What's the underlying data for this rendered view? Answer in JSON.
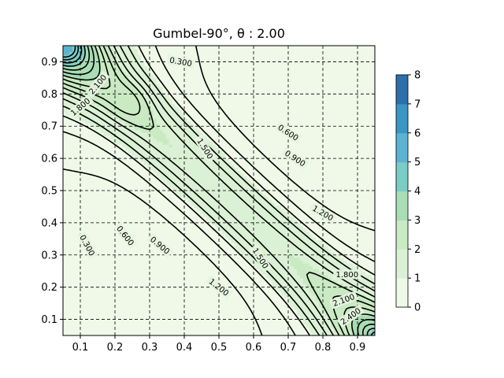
{
  "chart_data": {
    "type": "contour",
    "title": "Gumbel-90°, θ : 2.00",
    "xlabel": "",
    "ylabel": "",
    "xlim": [
      0.05,
      0.95
    ],
    "ylim": [
      0.05,
      0.95
    ],
    "x_ticks": [
      "0.1",
      "0.2",
      "0.3",
      "0.4",
      "0.5",
      "0.6",
      "0.7",
      "0.8",
      "0.9"
    ],
    "y_ticks": [
      "0.1",
      "0.2",
      "0.3",
      "0.4",
      "0.5",
      "0.6",
      "0.7",
      "0.8",
      "0.9"
    ],
    "grid": true,
    "grid_style": "dashed",
    "colormap": "GnBu",
    "colorbar": {
      "range": [
        0,
        8
      ],
      "ticks": [
        "0",
        "1",
        "2",
        "3",
        "4",
        "5",
        "6",
        "7",
        "8"
      ],
      "colors": [
        "#f0f9e8",
        "#dbf1d5",
        "#c9eac2",
        "#a8ddb5",
        "#7bccc4",
        "#5bb3d1",
        "#3a96c2",
        "#2b6fab"
      ]
    },
    "contour_levels": [
      0.3,
      0.6,
      0.9,
      1.2,
      1.5,
      1.8,
      2.1,
      2.4,
      2.7,
      3.0,
      3.3,
      3.6,
      3.9,
      4.2,
      4.5,
      4.8
    ],
    "contour_labels": [
      {
        "text": "0.300",
        "x": 0.39,
        "y": 0.9,
        "angle": 10
      },
      {
        "text": "0.300",
        "x": 0.12,
        "y": 0.33,
        "angle": 62
      },
      {
        "text": "0.600",
        "x": 0.7,
        "y": 0.68,
        "angle": 33
      },
      {
        "text": "0.600",
        "x": 0.23,
        "y": 0.36,
        "angle": 52
      },
      {
        "text": "0.900",
        "x": 0.72,
        "y": 0.6,
        "angle": 33
      },
      {
        "text": "0.900",
        "x": 0.33,
        "y": 0.33,
        "angle": 40
      },
      {
        "text": "1.200",
        "x": 0.8,
        "y": 0.43,
        "angle": 30
      },
      {
        "text": "1.200",
        "x": 0.5,
        "y": 0.2,
        "angle": 38
      },
      {
        "text": "1.500",
        "x": 0.46,
        "y": 0.63,
        "angle": 58
      },
      {
        "text": "1.500",
        "x": 0.62,
        "y": 0.29,
        "angle": 58
      },
      {
        "text": "1.800",
        "x": 0.87,
        "y": 0.24,
        "angle": 0
      },
      {
        "text": "2.100",
        "x": 0.86,
        "y": 0.16,
        "angle": -20
      },
      {
        "text": "2.400",
        "x": 0.88,
        "y": 0.11,
        "angle": -35
      },
      {
        "text": "1.800",
        "x": 0.1,
        "y": 0.76,
        "angle": -40
      },
      {
        "text": "2.100",
        "x": 0.15,
        "y": 0.83,
        "angle": -50
      }
    ]
  }
}
